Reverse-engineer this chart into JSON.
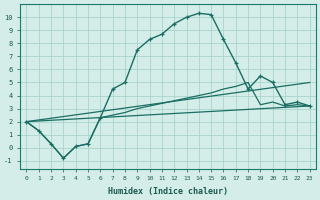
{
  "bg_color": "#d4ede8",
  "grid_color": "#a8d4cc",
  "line_color": "#1a6e64",
  "xlabel": "Humidex (Indice chaleur)",
  "xticks": [
    0,
    1,
    2,
    3,
    4,
    5,
    6,
    7,
    8,
    9,
    10,
    11,
    12,
    13,
    14,
    15,
    16,
    17,
    18,
    19,
    20,
    21,
    22,
    23
  ],
  "yticks": [
    -1,
    0,
    1,
    2,
    3,
    4,
    5,
    6,
    7,
    8,
    9,
    10
  ],
  "xlim": [
    -0.5,
    23.5
  ],
  "ylim": [
    -1.6,
    11.0
  ],
  "line1_x": [
    0,
    1,
    2,
    3,
    4,
    5,
    6,
    7,
    8,
    9,
    10,
    11,
    12,
    13,
    14,
    15,
    16,
    17,
    18,
    19,
    20,
    21,
    22,
    23
  ],
  "line1_y": [
    2.0,
    1.3,
    0.3,
    -0.8,
    0.1,
    0.3,
    2.3,
    4.5,
    5.0,
    7.5,
    8.3,
    8.7,
    9.5,
    10.0,
    10.3,
    10.2,
    8.3,
    6.5,
    4.5,
    5.5,
    5.0,
    3.3,
    3.5,
    3.2
  ],
  "line2_x": [
    0,
    1,
    2,
    3,
    4,
    5,
    6,
    7,
    8,
    9,
    10,
    11,
    12,
    13,
    14,
    15,
    16,
    17,
    18,
    19,
    20,
    21,
    22,
    23
  ],
  "line2_y": [
    2.0,
    1.3,
    0.3,
    -0.8,
    0.1,
    0.3,
    2.3,
    2.5,
    2.7,
    3.0,
    3.2,
    3.4,
    3.6,
    3.8,
    4.0,
    4.2,
    4.5,
    4.7,
    5.0,
    3.3,
    3.5,
    3.2,
    3.3,
    3.2
  ],
  "line3_x": [
    0,
    23
  ],
  "line3_y": [
    2.0,
    3.2
  ],
  "line4_x": [
    0,
    23
  ],
  "line4_y": [
    2.0,
    5.0
  ]
}
